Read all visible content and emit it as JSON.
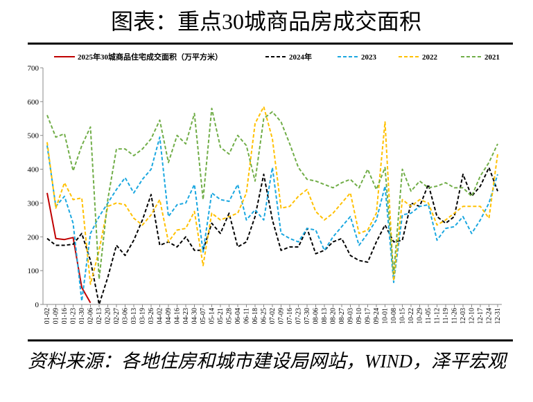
{
  "chart_data": {
    "type": "line",
    "title": "图表：重点30城商品房成交面积",
    "source": "资料来源：各地住房和城市建设局网站，WIND，泽平宏观",
    "categories": [
      "01-02",
      "01-09",
      "01-16",
      "01-23",
      "01-30",
      "02-06",
      "02-13",
      "02-20",
      "02-27",
      "03-06",
      "03-13",
      "03-19",
      "03-26",
      "04-02",
      "04-09",
      "04-16",
      "04-23",
      "04-30",
      "05-07",
      "05-14",
      "05-21",
      "05-28",
      "06-04",
      "06-11",
      "06-18",
      "06-25",
      "07-02",
      "07-09",
      "07-16",
      "07-23",
      "07-30",
      "08-06",
      "08-13",
      "08-20",
      "08-27",
      "09-03",
      "09-10",
      "09-17",
      "09-24",
      "10-01",
      "10-08",
      "10-15",
      "10-22",
      "10-29",
      "11-05",
      "11-12",
      "11-19",
      "11-26",
      "12-03",
      "12-10",
      "12-17",
      "12-24",
      "12-31"
    ],
    "ylim": [
      0,
      700
    ],
    "yticks": [
      0,
      100,
      200,
      300,
      400,
      500,
      600,
      700
    ],
    "series": [
      {
        "name": "2025年30城商品住宅成交面积（万平方米）",
        "color": "#c00000",
        "dash": "solid",
        "values": [
          330,
          195,
          192,
          198,
          50,
          5,
          null,
          null,
          null,
          null,
          null,
          null,
          null,
          null,
          null,
          null,
          null,
          null,
          null,
          null,
          null,
          null,
          null,
          null,
          null,
          null,
          null,
          null,
          null,
          null,
          null,
          null,
          null,
          null,
          null,
          null,
          null,
          null,
          null,
          null,
          null,
          null,
          null,
          null,
          null,
          null,
          null,
          null,
          null,
          null,
          null,
          null,
          null
        ]
      },
      {
        "name": "2024年",
        "color": "#000000",
        "dash": "dashed",
        "values": [
          195,
          175,
          175,
          178,
          210,
          130,
          0,
          80,
          175,
          145,
          190,
          250,
          325,
          175,
          185,
          170,
          200,
          160,
          160,
          240,
          210,
          270,
          170,
          185,
          260,
          385,
          250,
          160,
          170,
          170,
          225,
          150,
          160,
          185,
          195,
          145,
          130,
          125,
          185,
          235,
          185,
          190,
          300,
          290,
          355,
          260,
          240,
          260,
          385,
          320,
          350,
          405,
          335
        ]
      },
      {
        "name": "2023",
        "color": "#1aa7e0",
        "dash": "dashed",
        "values": [
          470,
          290,
          320,
          240,
          10,
          210,
          260,
          300,
          340,
          375,
          330,
          370,
          400,
          495,
          260,
          295,
          300,
          355,
          155,
          330,
          310,
          305,
          355,
          250,
          280,
          250,
          405,
          210,
          195,
          185,
          225,
          220,
          160,
          200,
          230,
          260,
          175,
          210,
          250,
          350,
          65,
          265,
          270,
          290,
          295,
          190,
          225,
          230,
          260,
          210,
          250,
          300,
          385
        ]
      },
      {
        "name": "2022",
        "color": "#ffc000",
        "dash": "dashed",
        "values": [
          480,
          285,
          360,
          310,
          315,
          60,
          160,
          290,
          300,
          295,
          255,
          235,
          265,
          310,
          185,
          220,
          225,
          275,
          115,
          270,
          250,
          260,
          270,
          330,
          535,
          585,
          490,
          285,
          290,
          320,
          340,
          275,
          250,
          270,
          300,
          330,
          210,
          220,
          270,
          540,
          70,
          310,
          290,
          310,
          300,
          235,
          250,
          270,
          290,
          290,
          290,
          255,
          445
        ]
      },
      {
        "name": "2021",
        "color": "#70ad47",
        "dash": "dashed",
        "values": [
          560,
          495,
          505,
          395,
          470,
          525,
          75,
          310,
          460,
          460,
          440,
          460,
          490,
          545,
          420,
          500,
          475,
          565,
          310,
          580,
          465,
          445,
          500,
          470,
          365,
          550,
          570,
          540,
          475,
          405,
          370,
          365,
          355,
          345,
          360,
          370,
          345,
          400,
          340,
          405,
          90,
          400,
          335,
          365,
          345,
          350,
          360,
          345,
          345,
          320,
          380,
          420,
          475
        ]
      }
    ]
  }
}
